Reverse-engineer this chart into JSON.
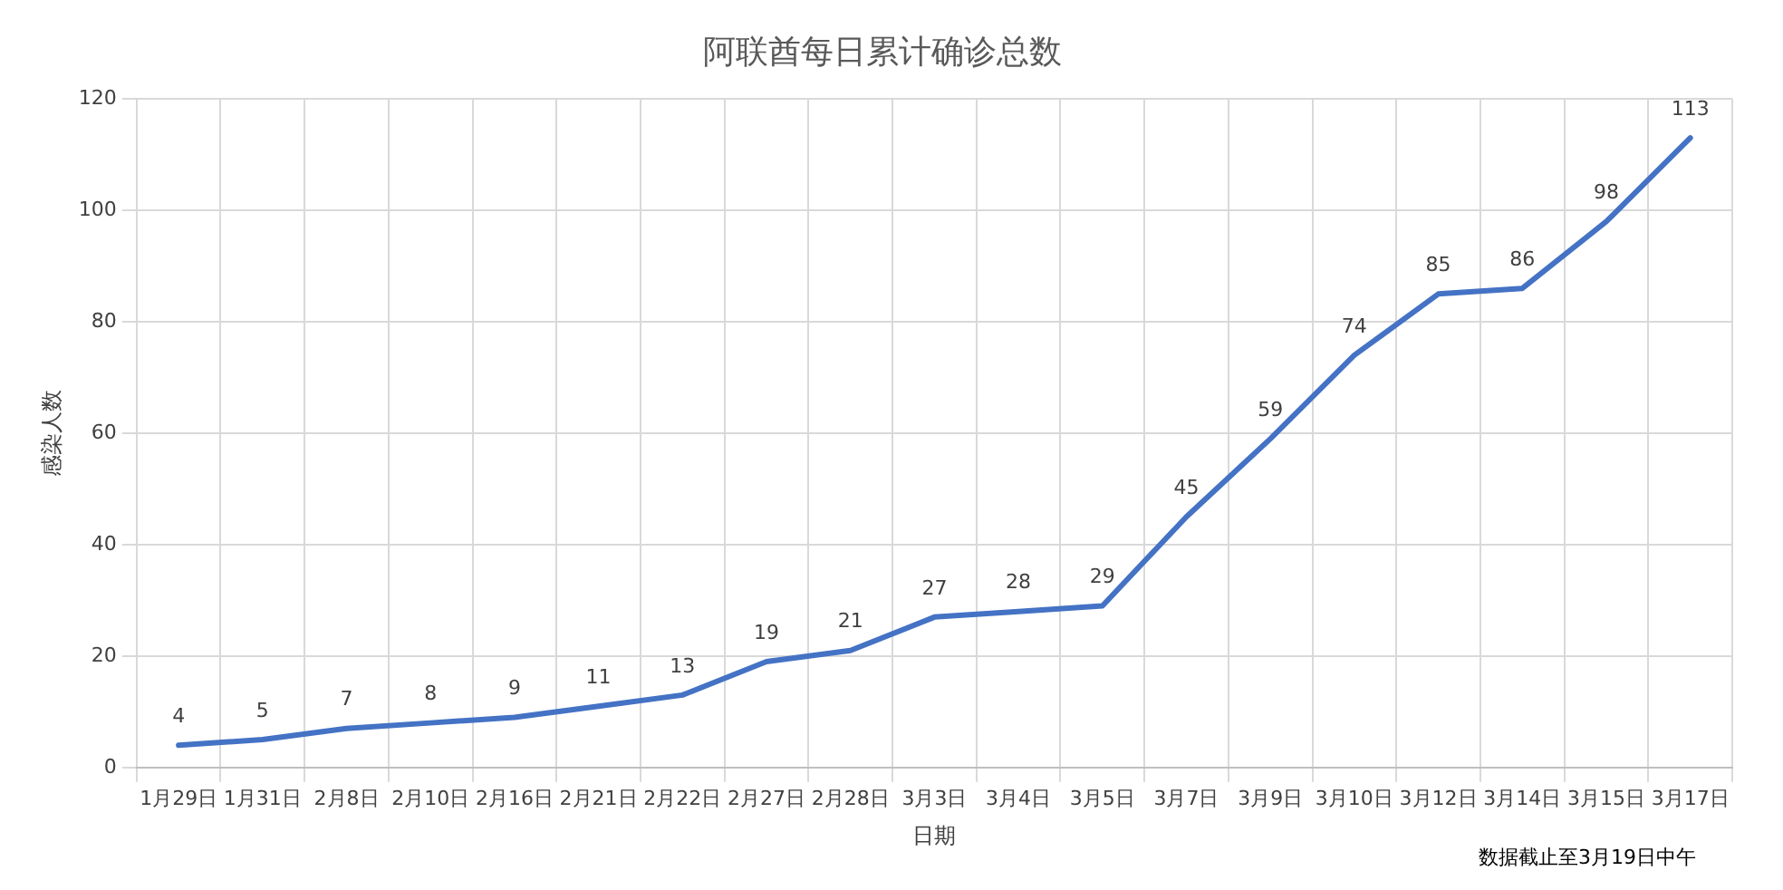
{
  "chart_data": {
    "type": "line",
    "title": "阿联酋每日累计确诊总数",
    "xlabel": "日期",
    "ylabel": "感染人数",
    "categories": [
      "1月29日",
      "1月31日",
      "2月8日",
      "2月10日",
      "2月16日",
      "2月21日",
      "2月22日",
      "2月27日",
      "2月28日",
      "3月3日",
      "3月4日",
      "3月5日",
      "3月7日",
      "3月9日",
      "3月10日",
      "3月12日",
      "3月14日",
      "3月15日",
      "3月17日"
    ],
    "series": [
      {
        "color": "#4472c4",
        "values": [
          4,
          5,
          7,
          8,
          9,
          11,
          13,
          19,
          21,
          27,
          28,
          29,
          45,
          59,
          74,
          85,
          86,
          98,
          113
        ]
      }
    ],
    "ylim": [
      0,
      120
    ],
    "yticks": [
      0,
      20,
      40,
      60,
      80,
      100,
      120
    ],
    "grid": true,
    "legend": false,
    "marker": "none",
    "line_style": "solid",
    "data_labels": true,
    "annotations": [
      "数据截止至3月19日中午"
    ]
  }
}
